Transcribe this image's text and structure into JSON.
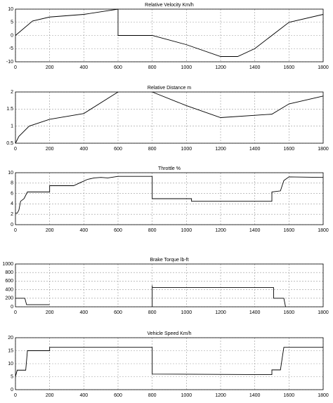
{
  "chart_data": [
    {
      "type": "line",
      "title": "Relative Velocity Km/h",
      "color": "#000000",
      "grid": true,
      "x": [
        0,
        100,
        200,
        400,
        600,
        600,
        800,
        1000,
        1200,
        1300,
        1400,
        1600,
        1800
      ],
      "values": [
        0,
        5.5,
        7,
        8,
        10,
        0,
        0,
        -3.5,
        -8,
        -8,
        -5,
        5,
        8
      ],
      "xlim": [
        0,
        1800
      ],
      "xticks": [
        0,
        200,
        400,
        600,
        800,
        1000,
        1200,
        1400,
        1600,
        1800
      ],
      "ylim": [
        -10,
        10
      ],
      "yticks": [
        -10,
        -5,
        0,
        5,
        10
      ]
    },
    {
      "type": "line",
      "title": "Relative Distance m",
      "color": "#000000",
      "grid": true,
      "x": [
        0,
        20,
        80,
        200,
        400,
        600,
        700,
        800,
        1000,
        1200,
        1500,
        1600,
        1800
      ],
      "values": [
        0.5,
        0.7,
        1,
        1.2,
        1.37,
        2,
        null,
        2,
        1.6,
        1.25,
        1.35,
        1.65,
        1.88
      ],
      "xlim": [
        0,
        1800
      ],
      "xticks": [
        0,
        200,
        400,
        600,
        800,
        1000,
        1200,
        1400,
        1600,
        1800
      ],
      "ylim": [
        0.5,
        2
      ],
      "yticks": [
        0.5,
        1,
        1.5,
        2
      ]
    },
    {
      "type": "line",
      "title": "Throttle %",
      "color": "#000000",
      "grid": true,
      "x": [
        0,
        10,
        20,
        30,
        50,
        70,
        200,
        200,
        340,
        380,
        420,
        460,
        500,
        540,
        600,
        800,
        800,
        1030,
        1030,
        1500,
        1500,
        1550,
        1570,
        1600,
        1800
      ],
      "values": [
        2.2,
        2.2,
        2.8,
        4.5,
        5,
        6.3,
        6.3,
        7.5,
        7.5,
        8.1,
        8.7,
        9,
        9.1,
        9,
        9.3,
        9.3,
        5,
        5,
        4.5,
        4.5,
        6.3,
        6.5,
        8.5,
        9.2,
        9.1
      ],
      "xlim": [
        0,
        1800
      ],
      "xticks": [
        0,
        200,
        400,
        600,
        800,
        1000,
        1200,
        1400,
        1600,
        1800
      ],
      "ylim": [
        0,
        10
      ],
      "yticks": [
        0,
        2,
        4,
        6,
        8,
        10
      ]
    },
    {
      "type": "line",
      "title": "Brake Torque lb-ft",
      "color": "#000000",
      "grid": true,
      "x": [
        0,
        55,
        65,
        200,
        500,
        800,
        800,
        800,
        1510,
        1510,
        1570,
        1580
      ],
      "values": [
        200,
        200,
        50,
        50,
        null,
        0,
        500,
        450,
        450,
        200,
        200,
        0
      ],
      "xlim": [
        0,
        1800
      ],
      "xticks": [
        0,
        200,
        400,
        600,
        800,
        1000,
        1200,
        1400,
        1600,
        1800
      ],
      "ylim": [
        0,
        1000
      ],
      "yticks": [
        0,
        200,
        400,
        600,
        800,
        1000
      ]
    },
    {
      "type": "line",
      "title": "Vehicle Speed Km/h",
      "color": "#000000",
      "grid": true,
      "x": [
        0,
        10,
        20,
        60,
        70,
        200,
        200,
        800,
        800,
        1500,
        1500,
        1550,
        1560,
        1570,
        1800
      ],
      "values": [
        5,
        7.5,
        7.5,
        7.5,
        15,
        15,
        16.3,
        16.3,
        6,
        5.8,
        7.6,
        7.6,
        12,
        16.3,
        16.3
      ],
      "xlim": [
        0,
        1800
      ],
      "xticks": [
        0,
        200,
        400,
        600,
        800,
        1000,
        1200,
        1400,
        1600,
        1800
      ],
      "ylim": [
        0,
        20
      ],
      "yticks": [
        0,
        5,
        10,
        15,
        20
      ]
    }
  ]
}
